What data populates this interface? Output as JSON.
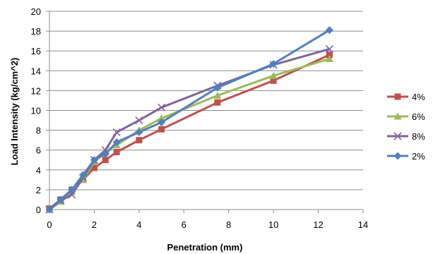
{
  "chart_data": {
    "type": "line",
    "xlabel": "Penetration (mm)",
    "ylabel": "Load Intensity (kg/cm^2)",
    "xlim": [
      0,
      14
    ],
    "ylim": [
      0,
      20
    ],
    "xticks": [
      0,
      2,
      4,
      6,
      8,
      10,
      12,
      14
    ],
    "yticks": [
      0,
      2,
      4,
      6,
      8,
      10,
      12,
      14,
      16,
      18,
      20
    ],
    "grid": "horizontal",
    "legend_position": "right",
    "x": [
      0,
      0.5,
      1,
      1.5,
      2,
      2.5,
      3,
      4,
      5,
      7.5,
      10,
      12.5
    ],
    "series": [
      {
        "name": "4%",
        "color": "#c0504d",
        "marker": "square",
        "values": [
          0.1,
          1.0,
          2.0,
          3.0,
          4.2,
          5.0,
          5.8,
          7.0,
          8.1,
          10.8,
          13.0,
          15.6
        ]
      },
      {
        "name": "6%",
        "color": "#9bbb59",
        "marker": "triangle",
        "values": [
          0.0,
          0.8,
          1.8,
          3.0,
          4.8,
          5.8,
          6.5,
          8.0,
          9.2,
          11.5,
          13.5,
          15.2
        ]
      },
      {
        "name": "8%",
        "color": "#8064a2",
        "marker": "x",
        "values": [
          0.0,
          0.9,
          1.5,
          3.2,
          5.0,
          6.0,
          7.8,
          9.0,
          10.3,
          12.5,
          14.6,
          16.2
        ]
      },
      {
        "name": "2%",
        "color": "#4f81bd",
        "marker": "diamond",
        "values": [
          0.0,
          1.0,
          2.0,
          3.5,
          5.0,
          5.6,
          6.8,
          7.8,
          8.8,
          12.3,
          14.7,
          18.1
        ]
      }
    ]
  }
}
